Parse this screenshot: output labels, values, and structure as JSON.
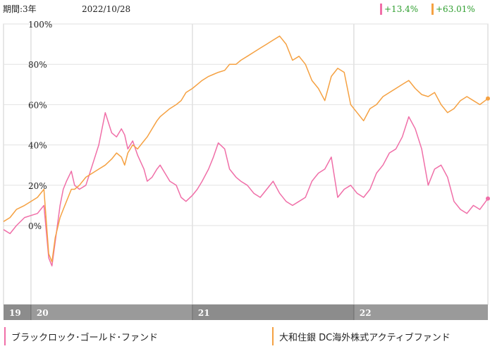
{
  "header": {
    "period_label": "期間:3年",
    "date": "2022/10/28"
  },
  "returns": [
    {
      "text": "+13.4%",
      "color": "#2e9e2e",
      "marker": "#f06fa8"
    },
    {
      "text": "+63.01%",
      "color": "#2e9e2e",
      "marker": "#f5a142"
    }
  ],
  "legend": [
    {
      "label": "ブラックロック･ゴールド･ファンド",
      "color": "#f06fa8"
    },
    {
      "label": "大和住銀 DC海外株式アクティブファンド",
      "color": "#f5a142"
    }
  ],
  "chart_data": {
    "type": "line",
    "title": "",
    "xlabel": "",
    "ylabel": "",
    "ylim": [
      -40,
      100
    ],
    "yticks": [
      {
        "v": 100,
        "label": "100%"
      },
      {
        "v": 80,
        "label": "80%"
      },
      {
        "v": 60,
        "label": "60%"
      },
      {
        "v": 40,
        "label": "40%"
      },
      {
        "v": 20,
        "label": "20%"
      },
      {
        "v": 0,
        "label": "0%"
      }
    ],
    "xlim": [
      2019.83,
      2022.83
    ],
    "year_bands": [
      {
        "label": "19",
        "start": 2019.83,
        "end": 2020.0
      },
      {
        "label": "20",
        "start": 2020.0,
        "end": 2021.0
      },
      {
        "label": "21",
        "start": 2021.0,
        "end": 2022.0
      },
      {
        "label": "22",
        "start": 2022.0,
        "end": 2022.83
      }
    ],
    "grid": "horizontal",
    "series": [
      {
        "name": "ブラックロック･ゴールド･ファンド",
        "color": "#f06fa8",
        "x": [
          2019.83,
          2019.87,
          2019.91,
          2019.96,
          2020.0,
          2020.04,
          2020.08,
          2020.11,
          2020.13,
          2020.15,
          2020.18,
          2020.2,
          2020.22,
          2020.25,
          2020.27,
          2020.3,
          2020.34,
          2020.38,
          2020.42,
          2020.46,
          2020.5,
          2020.53,
          2020.56,
          2020.58,
          2020.6,
          2020.63,
          2020.66,
          2020.7,
          2020.72,
          2020.75,
          2020.78,
          2020.8,
          2020.83,
          2020.86,
          2020.9,
          2020.93,
          2020.96,
          2021.0,
          2021.03,
          2021.06,
          2021.1,
          2021.13,
          2021.16,
          2021.2,
          2021.23,
          2021.27,
          2021.3,
          2021.34,
          2021.38,
          2021.42,
          2021.46,
          2021.5,
          2021.54,
          2021.58,
          2021.62,
          2021.66,
          2021.7,
          2021.74,
          2021.78,
          2021.82,
          2021.86,
          2021.9,
          2021.94,
          2021.98,
          2022.02,
          2022.06,
          2022.1,
          2022.14,
          2022.18,
          2022.22,
          2022.26,
          2022.3,
          2022.34,
          2022.38,
          2022.42,
          2022.46,
          2022.5,
          2022.54,
          2022.58,
          2022.62,
          2022.66,
          2022.7,
          2022.74,
          2022.78,
          2022.83
        ],
        "values": [
          -2,
          -4,
          0,
          4,
          5,
          6,
          10,
          -16,
          -20,
          -8,
          10,
          18,
          22,
          27,
          20,
          18,
          20,
          30,
          40,
          56,
          46,
          44,
          48,
          45,
          38,
          42,
          35,
          28,
          22,
          24,
          28,
          30,
          26,
          22,
          20,
          14,
          12,
          15,
          18,
          22,
          28,
          34,
          41,
          38,
          28,
          24,
          22,
          20,
          16,
          14,
          18,
          22,
          16,
          12,
          10,
          12,
          14,
          22,
          26,
          28,
          34,
          14,
          18,
          20,
          16,
          14,
          18,
          26,
          30,
          36,
          38,
          44,
          54,
          48,
          38,
          20,
          28,
          30,
          24,
          12,
          8,
          6,
          10,
          8,
          13.4
        ]
      },
      {
        "name": "大和住銀 DC海外株式アクティブファンド",
        "color": "#f5a142",
        "x": [
          2019.83,
          2019.87,
          2019.91,
          2019.96,
          2020.0,
          2020.04,
          2020.08,
          2020.11,
          2020.13,
          2020.15,
          2020.18,
          2020.2,
          2020.22,
          2020.25,
          2020.27,
          2020.3,
          2020.34,
          2020.38,
          2020.42,
          2020.46,
          2020.5,
          2020.53,
          2020.56,
          2020.58,
          2020.6,
          2020.63,
          2020.66,
          2020.7,
          2020.72,
          2020.75,
          2020.78,
          2020.8,
          2020.83,
          2020.86,
          2020.9,
          2020.93,
          2020.96,
          2021.0,
          2021.03,
          2021.06,
          2021.1,
          2021.13,
          2021.16,
          2021.2,
          2021.23,
          2021.27,
          2021.3,
          2021.34,
          2021.38,
          2021.42,
          2021.46,
          2021.5,
          2021.54,
          2021.58,
          2021.62,
          2021.66,
          2021.7,
          2021.74,
          2021.78,
          2021.82,
          2021.86,
          2021.9,
          2021.94,
          2021.98,
          2022.02,
          2022.06,
          2022.1,
          2022.14,
          2022.18,
          2022.22,
          2022.26,
          2022.3,
          2022.34,
          2022.38,
          2022.42,
          2022.46,
          2022.5,
          2022.54,
          2022.58,
          2022.62,
          2022.66,
          2022.7,
          2022.74,
          2022.78,
          2022.83
        ],
        "values": [
          2,
          4,
          8,
          10,
          12,
          14,
          18,
          -14,
          -18,
          -6,
          4,
          8,
          12,
          18,
          18,
          20,
          24,
          26,
          28,
          30,
          33,
          36,
          34,
          30,
          36,
          40,
          38,
          42,
          44,
          48,
          52,
          54,
          56,
          58,
          60,
          62,
          66,
          68,
          70,
          72,
          74,
          75,
          76,
          77,
          80,
          80,
          82,
          84,
          86,
          88,
          90,
          92,
          94,
          90,
          82,
          84,
          80,
          72,
          68,
          62,
          74,
          78,
          76,
          60,
          56,
          52,
          58,
          60,
          64,
          66,
          68,
          70,
          72,
          68,
          65,
          64,
          66,
          60,
          56,
          58,
          62,
          64,
          62,
          60,
          63.01
        ]
      }
    ]
  }
}
